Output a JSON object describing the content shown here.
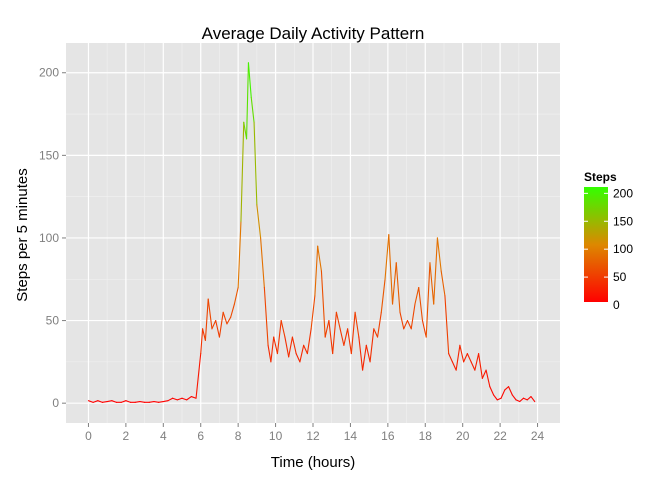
{
  "chart_data": {
    "type": "line",
    "title": "Average Daily Activity Pattern",
    "xlabel": "Time (hours)",
    "ylabel": "Steps per 5 minutes",
    "xlim": [
      -1.2,
      25.2
    ],
    "ylim": [
      -12,
      218
    ],
    "x_ticks": [
      0,
      2,
      4,
      6,
      8,
      10,
      12,
      14,
      16,
      18,
      20,
      22,
      24
    ],
    "x_tick_labels": [
      "0",
      "2",
      "4",
      "6",
      "8",
      "10",
      "12",
      "14",
      "16",
      "18",
      "20",
      "22",
      "24"
    ],
    "y_ticks": [
      0,
      50,
      100,
      150,
      200
    ],
    "y_tick_labels": [
      "0",
      "50",
      "100",
      "150",
      "200"
    ],
    "grid": true,
    "legend": {
      "title": "Steps",
      "position": "right",
      "labels": [
        "200",
        "150",
        "100",
        "50",
        "0"
      ],
      "values": [
        200,
        150,
        100,
        50,
        0
      ],
      "color_low": "#ff0000",
      "color_high": "#33ff00"
    },
    "colors": {
      "panel_background": "#e5e5e5",
      "grid_major": "#ffffff",
      "grid_minor": "#f2f2f2"
    },
    "series": [
      {
        "x": [
          0,
          0.25,
          0.5,
          0.75,
          1,
          1.25,
          1.5,
          1.75,
          2,
          2.25,
          2.5,
          2.75,
          3,
          3.25,
          3.5,
          3.75,
          4,
          4.25,
          4.5,
          4.75,
          5,
          5.25,
          5.5,
          5.75,
          6,
          6.1,
          6.25,
          6.4,
          6.6,
          6.8,
          7,
          7.2,
          7.4,
          7.6,
          7.8,
          8,
          8.15,
          8.3,
          8.45,
          8.55,
          8.7,
          8.85,
          9,
          9.2,
          9.4,
          9.6,
          9.75,
          9.9,
          10.1,
          10.3,
          10.5,
          10.7,
          10.9,
          11.1,
          11.3,
          11.5,
          11.7,
          11.9,
          12.1,
          12.25,
          12.45,
          12.65,
          12.85,
          13.05,
          13.25,
          13.45,
          13.65,
          13.85,
          14.05,
          14.25,
          14.45,
          14.65,
          14.85,
          15.05,
          15.25,
          15.45,
          15.65,
          15.85,
          16.05,
          16.25,
          16.45,
          16.65,
          16.85,
          17.05,
          17.25,
          17.45,
          17.65,
          17.85,
          18.05,
          18.25,
          18.45,
          18.65,
          18.85,
          19.05,
          19.25,
          19.45,
          19.65,
          19.85,
          20.05,
          20.25,
          20.45,
          20.65,
          20.85,
          21.05,
          21.25,
          21.45,
          21.65,
          21.85,
          22.05,
          22.25,
          22.45,
          22.65,
          22.85,
          23.05,
          23.25,
          23.45,
          23.65,
          23.85
        ],
        "values": [
          1.5,
          0.5,
          1.5,
          0.5,
          1,
          1.5,
          0.5,
          0.5,
          1.5,
          0.5,
          0.5,
          1,
          0.5,
          0.5,
          1,
          0.5,
          1,
          1.5,
          3,
          2,
          3,
          2,
          4,
          3,
          30,
          45,
          38,
          63,
          45,
          50,
          40,
          55,
          48,
          52,
          60,
          70,
          110,
          170,
          160,
          206,
          185,
          170,
          120,
          100,
          70,
          35,
          25,
          40,
          30,
          50,
          40,
          28,
          40,
          30,
          25,
          35,
          30,
          45,
          65,
          95,
          80,
          40,
          50,
          30,
          55,
          45,
          35,
          45,
          30,
          55,
          40,
          20,
          35,
          25,
          45,
          40,
          55,
          75,
          102,
          60,
          85,
          55,
          45,
          50,
          45,
          60,
          70,
          50,
          40,
          85,
          60,
          100,
          80,
          65,
          30,
          25,
          20,
          35,
          25,
          30,
          25,
          20,
          30,
          15,
          20,
          10,
          5,
          2,
          3,
          8,
          10,
          5,
          2,
          1,
          3,
          2,
          4,
          1
        ]
      }
    ]
  }
}
